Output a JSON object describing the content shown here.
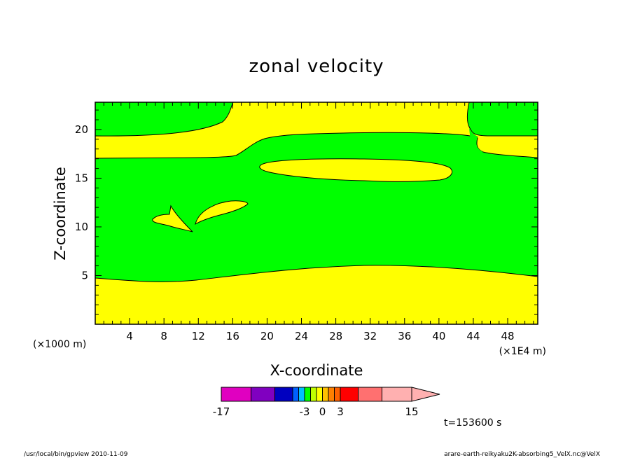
{
  "chart_data": {
    "type": "heatmap",
    "title": "zonal velocity",
    "xlabel": "X-coordinate",
    "ylabel": "Z-coordinate",
    "x_unit_left": "(×1000 m)",
    "x_unit_right": "(×1E4 m)",
    "xlim": [
      0,
      51.5
    ],
    "ylim": [
      0,
      22.8
    ],
    "x_ticks": [
      4,
      8,
      12,
      16,
      20,
      24,
      28,
      32,
      36,
      40,
      44,
      48
    ],
    "x_tick_labels": [
      "4",
      "8",
      "12",
      "16",
      "20",
      "24",
      "28",
      "32",
      "36",
      "40",
      "44",
      "48"
    ],
    "y_ticks": [
      5,
      10,
      15,
      20
    ],
    "y_tick_labels": [
      "5",
      "10",
      "15",
      "20"
    ],
    "colorbar": {
      "colors": [
        "#e000c0",
        "#8000c0",
        "#0000c0",
        "#0060ff",
        "#00c0ff",
        "#00ff00",
        "#c0ff00",
        "#ffff00",
        "#ffc000",
        "#ff8000",
        "#ff6000",
        "#ff0000",
        "#ff7070",
        "#ffb0b0"
      ],
      "tick_labels": [
        "-17",
        "-3",
        "0",
        "3",
        "15"
      ]
    },
    "regions": {
      "background_level": "positive-low",
      "background_color": "#00ff00",
      "highlight_level": "0 to 3",
      "highlight_color": "#ffff00"
    },
    "annotations": {
      "time": "t=153600 s",
      "footer_left": "/usr/local/bin/gpview   2010-11-09",
      "footer_right": "arare-earth-reikyaku2K-absorbing5_VelX.nc@VelX"
    }
  },
  "colors": {
    "frame": "#000000",
    "green": "#00ff00",
    "yellow": "#ffff00"
  }
}
